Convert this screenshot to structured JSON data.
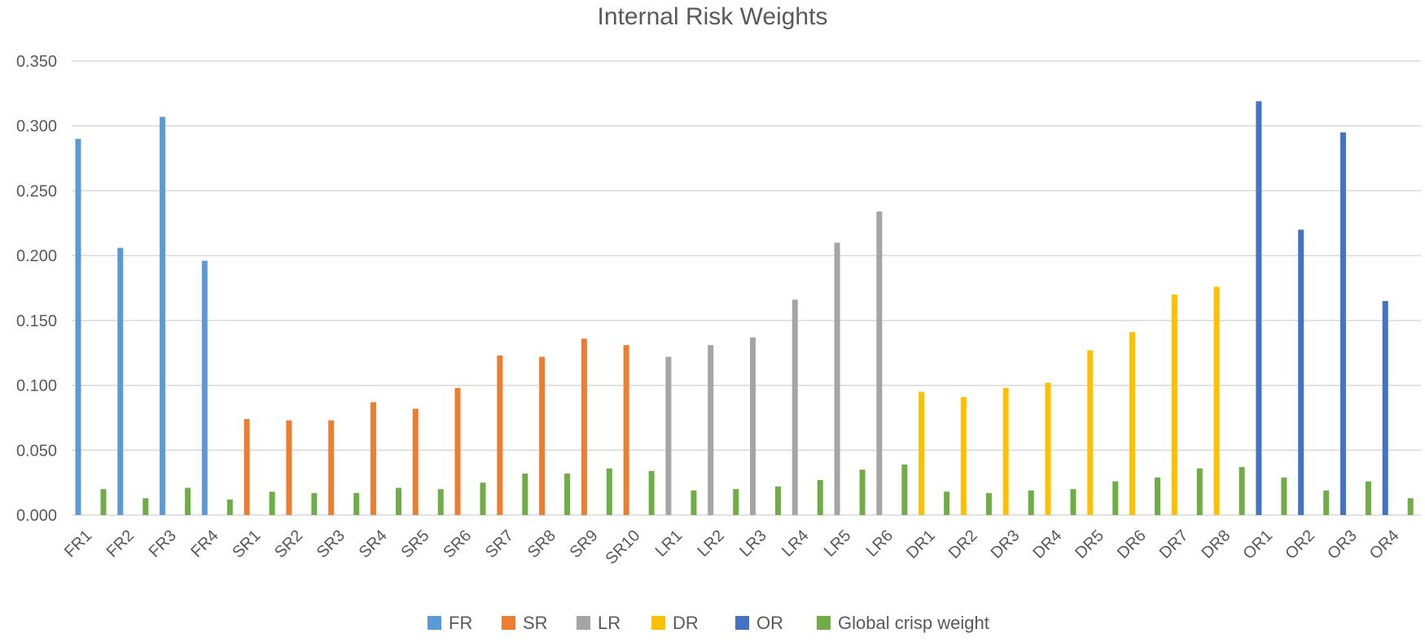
{
  "chart_data": {
    "type": "bar",
    "title": "Internal Risk Weights",
    "xlabel": "",
    "ylabel": "",
    "ylim": [
      0,
      0.35
    ],
    "yticks": [
      "0.000",
      "0.050",
      "0.100",
      "0.150",
      "0.200",
      "0.250",
      "0.300",
      "0.350"
    ],
    "categories": [
      "FR1",
      "FR2",
      "FR3",
      "FR4",
      "SR1",
      "SR2",
      "SR3",
      "SR4",
      "SR5",
      "SR6",
      "SR7",
      "SR8",
      "SR9",
      "SR10",
      "LR1",
      "LR2",
      "LR3",
      "LR4",
      "LR5",
      "LR6",
      "DR1",
      "DR2",
      "DR3",
      "DR4",
      "DR5",
      "DR6",
      "DR7",
      "DR8",
      "OR1",
      "OR2",
      "OR3",
      "OR4"
    ],
    "groups": [
      {
        "name": "FR",
        "color": "#5B9BD5",
        "start": 0,
        "values": [
          0.29,
          0.206,
          0.307,
          0.196
        ]
      },
      {
        "name": "SR",
        "color": "#ED7D31",
        "start": 4,
        "values": [
          0.074,
          0.073,
          0.073,
          0.087,
          0.082,
          0.098,
          0.123,
          0.122,
          0.136,
          0.131
        ]
      },
      {
        "name": "LR",
        "color": "#A5A5A5",
        "start": 14,
        "values": [
          0.122,
          0.131,
          0.137,
          0.166,
          0.21,
          0.234
        ]
      },
      {
        "name": "DR",
        "color": "#FFC000",
        "start": 20,
        "values": [
          0.095,
          0.091,
          0.098,
          0.102,
          0.127,
          0.141,
          0.17,
          0.176
        ]
      },
      {
        "name": "OR",
        "color": "#4472C4",
        "start": 28,
        "values": [
          0.319,
          0.22,
          0.295,
          0.165
        ]
      }
    ],
    "global_crisp_weight": {
      "name": "Global crisp weight",
      "color": "#70AD47",
      "values": [
        0.02,
        0.013,
        0.021,
        0.012,
        0.018,
        0.017,
        0.017,
        0.021,
        0.02,
        0.025,
        0.032,
        0.032,
        0.036,
        0.034,
        0.019,
        0.02,
        0.022,
        0.027,
        0.035,
        0.039,
        0.018,
        0.017,
        0.019,
        0.02,
        0.026,
        0.029,
        0.036,
        0.037,
        0.029,
        0.019,
        0.026,
        0.013
      ]
    },
    "legend": [
      "FR",
      "SR",
      "LR",
      "DR",
      "OR",
      "Global crisp weight"
    ],
    "legend_position": "bottom",
    "grid": true
  }
}
